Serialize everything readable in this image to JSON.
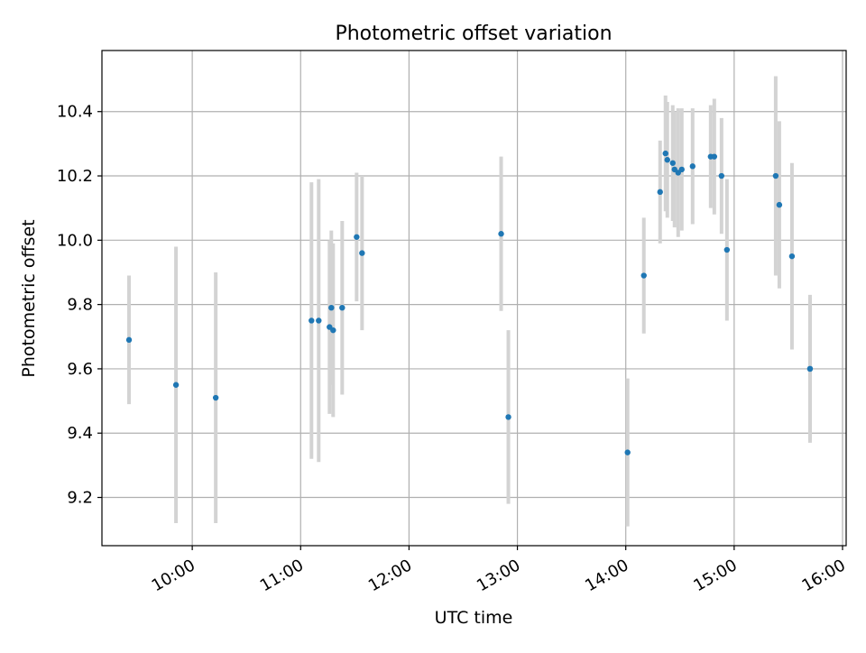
{
  "chart_data": {
    "type": "scatter",
    "title": "Photometric offset variation",
    "xlabel": "UTC time",
    "ylabel": "Photometric offset",
    "xlim": [
      "09:10",
      "16:02"
    ],
    "ylim": [
      9.05,
      10.59
    ],
    "x_ticks": [
      "10:00",
      "11:00",
      "12:00",
      "13:00",
      "14:00",
      "15:00",
      "16:00"
    ],
    "y_ticks": [
      "9.2",
      "9.4",
      "9.6",
      "9.8",
      "10.0",
      "10.2",
      "10.4"
    ],
    "grid": true,
    "marker_color": "#1f77b4",
    "errorbar_color": "#d3d3d3",
    "series": [
      {
        "points": [
          {
            "t": "09:25",
            "y": 9.69,
            "err": 0.2
          },
          {
            "t": "09:51",
            "y": 9.55,
            "err": 0.43
          },
          {
            "t": "10:13",
            "y": 9.51,
            "err": 0.39
          },
          {
            "t": "11:06",
            "y": 9.75,
            "err": 0.43
          },
          {
            "t": "11:10",
            "y": 9.75,
            "err": 0.44
          },
          {
            "t": "11:16",
            "y": 9.73,
            "err": 0.27
          },
          {
            "t": "11:17",
            "y": 9.79,
            "err": 0.24
          },
          {
            "t": "11:18",
            "y": 9.72,
            "err": 0.27
          },
          {
            "t": "11:23",
            "y": 9.79,
            "err": 0.27
          },
          {
            "t": "11:31",
            "y": 10.01,
            "err": 0.2
          },
          {
            "t": "11:34",
            "y": 9.96,
            "err": 0.24
          },
          {
            "t": "12:51",
            "y": 10.02,
            "err": 0.24
          },
          {
            "t": "12:55",
            "y": 9.45,
            "err": 0.27
          },
          {
            "t": "14:01",
            "y": 9.34,
            "err": 0.23
          },
          {
            "t": "14:10",
            "y": 9.89,
            "err": 0.18
          },
          {
            "t": "14:19",
            "y": 10.15,
            "err": 0.16
          },
          {
            "t": "14:22",
            "y": 10.27,
            "err": 0.18
          },
          {
            "t": "14:23",
            "y": 10.25,
            "err": 0.18
          },
          {
            "t": "14:26",
            "y": 10.24,
            "err": 0.18
          },
          {
            "t": "14:27",
            "y": 10.22,
            "err": 0.18
          },
          {
            "t": "14:29",
            "y": 10.21,
            "err": 0.2
          },
          {
            "t": "14:31",
            "y": 10.22,
            "err": 0.19
          },
          {
            "t": "14:37",
            "y": 10.23,
            "err": 0.18
          },
          {
            "t": "14:47",
            "y": 10.26,
            "err": 0.16
          },
          {
            "t": "14:49",
            "y": 10.26,
            "err": 0.18
          },
          {
            "t": "14:53",
            "y": 10.2,
            "err": 0.18
          },
          {
            "t": "14:56",
            "y": 9.97,
            "err": 0.22
          },
          {
            "t": "15:23",
            "y": 10.2,
            "err": 0.31
          },
          {
            "t": "15:25",
            "y": 10.11,
            "err": 0.26
          },
          {
            "t": "15:32",
            "y": 9.95,
            "err": 0.29
          },
          {
            "t": "15:42",
            "y": 9.6,
            "err": 0.23
          },
          {
            "t": "15:42",
            "y": 9.6,
            "err": 0.22
          }
        ]
      }
    ]
  }
}
